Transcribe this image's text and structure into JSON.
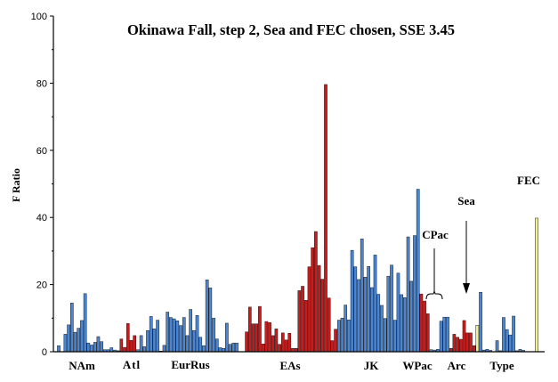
{
  "chart_data": {
    "type": "bar",
    "title": "Okinawa Fall, step 2, Sea and FEC chosen, SSE 3.45",
    "xlabel": "",
    "ylabel": "F Ratio",
    "ylim": [
      0,
      100
    ],
    "yticks": [
      0,
      20,
      40,
      60,
      80,
      100
    ],
    "grid": false,
    "colors": {
      "blue": "#4a86d4",
      "red": "#cc1a1a",
      "yellow": "#f4f190",
      "edge": "#1a1a1a"
    },
    "group_labels": [
      "NAm",
      "Atl",
      "EurRus",
      "EAs",
      "JK",
      "WPac",
      "CPac",
      "Arc",
      "Sea",
      "Type",
      "FEC"
    ],
    "annotations": [
      {
        "label": "CPac",
        "points_to": "CPac bars"
      },
      {
        "label": "Sea",
        "points_to": "Sea bar"
      }
    ],
    "bars": [
      {
        "v": 1.8,
        "c": "blue"
      },
      {
        "v": 0.0,
        "c": "blue"
      },
      {
        "v": 5.2,
        "c": "blue"
      },
      {
        "v": 8.0,
        "c": "blue"
      },
      {
        "v": 14.5,
        "c": "blue"
      },
      {
        "v": 5.8,
        "c": "blue"
      },
      {
        "v": 7.0,
        "c": "blue"
      },
      {
        "v": 9.3,
        "c": "blue"
      },
      {
        "v": 17.3,
        "c": "blue"
      },
      {
        "v": 2.6,
        "c": "blue"
      },
      {
        "v": 2.0,
        "c": "blue"
      },
      {
        "v": 2.8,
        "c": "blue"
      },
      {
        "v": 4.5,
        "c": "blue"
      },
      {
        "v": 3.0,
        "c": "blue"
      },
      {
        "v": 0.6,
        "c": "blue"
      },
      {
        "v": 0.6,
        "c": "blue"
      },
      {
        "v": 1.2,
        "c": "blue"
      },
      {
        "v": 0.5,
        "c": "blue"
      },
      {
        "v": 0.3,
        "c": "red"
      },
      {
        "v": 3.8,
        "c": "red"
      },
      {
        "v": 1.3,
        "c": "red"
      },
      {
        "v": 8.4,
        "c": "red"
      },
      {
        "v": 3.4,
        "c": "red"
      },
      {
        "v": 4.8,
        "c": "red"
      },
      {
        "v": 0.6,
        "c": "blue"
      },
      {
        "v": 4.8,
        "c": "blue"
      },
      {
        "v": 1.5,
        "c": "blue"
      },
      {
        "v": 6.3,
        "c": "blue"
      },
      {
        "v": 10.5,
        "c": "blue"
      },
      {
        "v": 6.8,
        "c": "blue"
      },
      {
        "v": 9.4,
        "c": "blue"
      },
      {
        "v": 0.2,
        "c": "blue"
      },
      {
        "v": 1.9,
        "c": "blue"
      },
      {
        "v": 11.8,
        "c": "blue"
      },
      {
        "v": 10.2,
        "c": "blue"
      },
      {
        "v": 9.8,
        "c": "blue"
      },
      {
        "v": 9.2,
        "c": "blue"
      },
      {
        "v": 7.8,
        "c": "blue"
      },
      {
        "v": 10.2,
        "c": "blue"
      },
      {
        "v": 4.8,
        "c": "blue"
      },
      {
        "v": 12.6,
        "c": "blue"
      },
      {
        "v": 6.3,
        "c": "blue"
      },
      {
        "v": 10.8,
        "c": "blue"
      },
      {
        "v": 4.3,
        "c": "blue"
      },
      {
        "v": 1.8,
        "c": "blue"
      },
      {
        "v": 21.4,
        "c": "blue"
      },
      {
        "v": 19.0,
        "c": "blue"
      },
      {
        "v": 10.0,
        "c": "blue"
      },
      {
        "v": 3.8,
        "c": "blue"
      },
      {
        "v": 1.2,
        "c": "blue"
      },
      {
        "v": 1.0,
        "c": "blue"
      },
      {
        "v": 8.5,
        "c": "blue"
      },
      {
        "v": 2.2,
        "c": "blue"
      },
      {
        "v": 2.6,
        "c": "blue"
      },
      {
        "v": 2.6,
        "c": "blue"
      },
      {
        "v": 0.0,
        "c": "blue"
      },
      {
        "v": 0.0,
        "c": "blue"
      },
      {
        "v": 5.9,
        "c": "red"
      },
      {
        "v": 13.3,
        "c": "red"
      },
      {
        "v": 8.3,
        "c": "red"
      },
      {
        "v": 8.3,
        "c": "red"
      },
      {
        "v": 13.5,
        "c": "red"
      },
      {
        "v": 2.3,
        "c": "red"
      },
      {
        "v": 9.0,
        "c": "red"
      },
      {
        "v": 8.7,
        "c": "red"
      },
      {
        "v": 4.8,
        "c": "red"
      },
      {
        "v": 6.8,
        "c": "red"
      },
      {
        "v": 2.2,
        "c": "red"
      },
      {
        "v": 5.6,
        "c": "red"
      },
      {
        "v": 3.5,
        "c": "red"
      },
      {
        "v": 5.5,
        "c": "red"
      },
      {
        "v": 1.0,
        "c": "red"
      },
      {
        "v": 1.0,
        "c": "red"
      },
      {
        "v": 18.2,
        "c": "red"
      },
      {
        "v": 19.5,
        "c": "red"
      },
      {
        "v": 15.3,
        "c": "red"
      },
      {
        "v": 25.3,
        "c": "red"
      },
      {
        "v": 31.0,
        "c": "red"
      },
      {
        "v": 35.8,
        "c": "red"
      },
      {
        "v": 25.7,
        "c": "red"
      },
      {
        "v": 21.6,
        "c": "red"
      },
      {
        "v": 79.6,
        "c": "red"
      },
      {
        "v": 16.0,
        "c": "red"
      },
      {
        "v": 3.3,
        "c": "red"
      },
      {
        "v": 6.7,
        "c": "red"
      },
      {
        "v": 9.4,
        "c": "blue"
      },
      {
        "v": 10.0,
        "c": "blue"
      },
      {
        "v": 13.9,
        "c": "blue"
      },
      {
        "v": 9.5,
        "c": "blue"
      },
      {
        "v": 30.2,
        "c": "blue"
      },
      {
        "v": 25.3,
        "c": "blue"
      },
      {
        "v": 21.5,
        "c": "blue"
      },
      {
        "v": 33.6,
        "c": "blue"
      },
      {
        "v": 22.2,
        "c": "blue"
      },
      {
        "v": 25.4,
        "c": "blue"
      },
      {
        "v": 19.1,
        "c": "blue"
      },
      {
        "v": 28.8,
        "c": "blue"
      },
      {
        "v": 17.1,
        "c": "blue"
      },
      {
        "v": 13.8,
        "c": "blue"
      },
      {
        "v": 9.9,
        "c": "blue"
      },
      {
        "v": 22.5,
        "c": "blue"
      },
      {
        "v": 25.8,
        "c": "blue"
      },
      {
        "v": 9.4,
        "c": "blue"
      },
      {
        "v": 23.4,
        "c": "blue"
      },
      {
        "v": 17.0,
        "c": "blue"
      },
      {
        "v": 16.1,
        "c": "blue"
      },
      {
        "v": 34.2,
        "c": "blue"
      },
      {
        "v": 21.0,
        "c": "blue"
      },
      {
        "v": 34.6,
        "c": "blue"
      },
      {
        "v": 48.4,
        "c": "blue"
      },
      {
        "v": 17.2,
        "c": "red"
      },
      {
        "v": 15.1,
        "c": "red"
      },
      {
        "v": 11.3,
        "c": "red"
      },
      {
        "v": 0.6,
        "c": "blue"
      },
      {
        "v": 0.5,
        "c": "blue"
      },
      {
        "v": 0.7,
        "c": "blue"
      },
      {
        "v": 9.1,
        "c": "blue"
      },
      {
        "v": 10.3,
        "c": "blue"
      },
      {
        "v": 10.3,
        "c": "blue"
      },
      {
        "v": 1.0,
        "c": "red"
      },
      {
        "v": 5.2,
        "c": "red"
      },
      {
        "v": 4.3,
        "c": "red"
      },
      {
        "v": 3.7,
        "c": "red"
      },
      {
        "v": 9.3,
        "c": "red"
      },
      {
        "v": 5.6,
        "c": "red"
      },
      {
        "v": 5.6,
        "c": "red"
      },
      {
        "v": 1.8,
        "c": "red"
      },
      {
        "v": 7.9,
        "c": "yellow"
      },
      {
        "v": 17.7,
        "c": "blue"
      },
      {
        "v": 0.5,
        "c": "blue"
      },
      {
        "v": 0.7,
        "c": "blue"
      },
      {
        "v": 0.4,
        "c": "blue"
      },
      {
        "v": 0.0,
        "c": "blue"
      },
      {
        "v": 3.3,
        "c": "blue"
      },
      {
        "v": 0.3,
        "c": "blue"
      },
      {
        "v": 10.2,
        "c": "blue"
      },
      {
        "v": 6.6,
        "c": "blue"
      },
      {
        "v": 5.0,
        "c": "blue"
      },
      {
        "v": 10.6,
        "c": "blue"
      },
      {
        "v": 0.3,
        "c": "blue"
      },
      {
        "v": 0.7,
        "c": "blue"
      },
      {
        "v": 0.4,
        "c": "blue"
      },
      {
        "v": 0.0,
        "c": "blue"
      },
      {
        "v": 0.0,
        "c": "blue"
      },
      {
        "v": 0.0,
        "c": "blue"
      },
      {
        "v": 39.8,
        "c": "yellow"
      }
    ]
  }
}
